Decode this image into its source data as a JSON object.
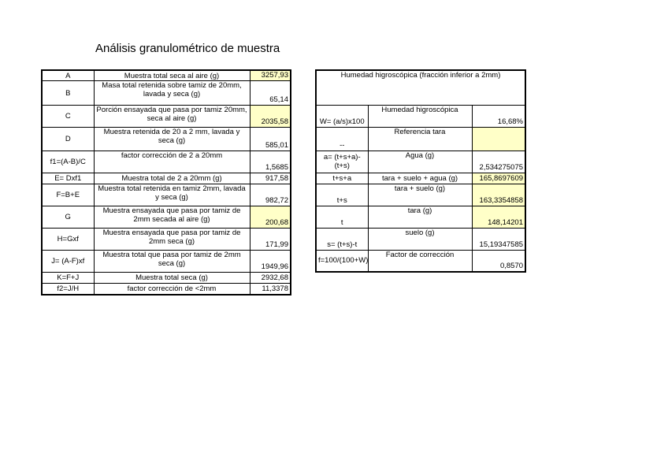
{
  "title": "Análisis granulométrico de muestra",
  "highlight_color": "#ffffc8",
  "left_table": {
    "rows": [
      {
        "symbol": "A",
        "description": "Muestra total seca al aire (g)",
        "value": "3257,93",
        "highlighted": true
      },
      {
        "symbol": "B",
        "description": "Masa total retenida sobre tamiz de 20mm, lavada y seca (g)",
        "value": "65,14",
        "highlighted": false
      },
      {
        "symbol": "C",
        "description": "Porción ensayada que pasa por tamiz 20mm, seca al aire (g)",
        "value": "2035,58",
        "highlighted": true
      },
      {
        "symbol": "D",
        "description": "Muestra retenida de 20 a 2 mm, lavada y seca (g)",
        "value": "585,01",
        "highlighted": false
      },
      {
        "symbol": "f1=(A-B)/C",
        "description": "factor corrección de 2 a 20mm",
        "value": "1,5685",
        "highlighted": false
      },
      {
        "symbol": "E= Dxf1",
        "description": "Muestra total de 2 a 20mm (g)",
        "value": "917,58",
        "highlighted": false
      },
      {
        "symbol": "F=B+E",
        "description": "Muestra total retenida en tamiz 2mm, lavada y seca (g)",
        "value": "982,72",
        "highlighted": false
      },
      {
        "symbol": "G",
        "description": "Muestra ensayada que pasa por tamiz de 2mm secada al aire (g)",
        "value": "200,68",
        "highlighted": true
      },
      {
        "symbol": "H=Gxf",
        "description": "Muestra ensayada que pasa por tamiz de 2mm seca (g)",
        "value": "171,99",
        "highlighted": false
      },
      {
        "symbol": "J= (A-F)xf",
        "description": "Muestra total que pasa por tamiz de 2mm seca (g)",
        "value": "1949,96",
        "highlighted": false
      },
      {
        "symbol": "K=F+J",
        "description": "Muestra total seca (g)",
        "value": "2932,68",
        "highlighted": false
      },
      {
        "symbol": "f2=J/H",
        "description": "factor corrección de <2mm",
        "value": "11,3378",
        "highlighted": false
      }
    ]
  },
  "right_table": {
    "header": "Humedad higroscópica (fracción inferior a 2mm)",
    "rows": [
      {
        "symbol": "W= (a/s)x100",
        "description": "Humedad higroscópica",
        "value": "16,68%",
        "highlighted": false
      },
      {
        "symbol": "--",
        "description": "Referencia tara",
        "value": "",
        "highlighted": true
      },
      {
        "symbol": "a= (t+s+a)-(t+s)",
        "description": "Agua (g)",
        "value": "2,534275075",
        "highlighted": false
      },
      {
        "symbol": "t+s+a",
        "description": "tara + suelo + agua (g)",
        "value": "165,8697609",
        "highlighted": true
      },
      {
        "symbol": "t+s",
        "description": "tara + suelo (g)",
        "value": "163,3354858",
        "highlighted": true
      },
      {
        "symbol": "t",
        "description": "tara (g)",
        "value": "148,14201",
        "highlighted": true
      },
      {
        "symbol": "s= (t+s)-t",
        "description": "suelo (g)",
        "value": "15,19347585",
        "highlighted": false
      },
      {
        "symbol": "f=100/(100+W)",
        "description": "Factor de corrección",
        "value": "0,8570",
        "highlighted": false
      }
    ]
  }
}
